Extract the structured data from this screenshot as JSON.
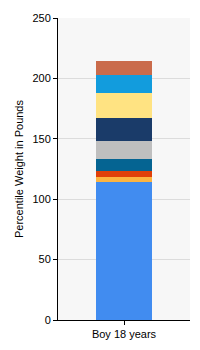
{
  "chart_data": {
    "type": "bar",
    "stacked": true,
    "grid": true,
    "y_label": "Percentile Weight in Pounds",
    "categories": [
      "Boy 18 years"
    ],
    "series": [
      {
        "color": "#418CF0",
        "values": [
          114
        ]
      },
      {
        "color": "#FCB441",
        "values": [
          4
        ]
      },
      {
        "color": "#E0400A",
        "values": [
          5
        ]
      },
      {
        "color": "#056492",
        "values": [
          10
        ]
      },
      {
        "color": "#BFBFBF",
        "values": [
          15
        ]
      },
      {
        "color": "#1A3B69",
        "values": [
          19
        ]
      },
      {
        "color": "#FFE382",
        "values": [
          21
        ]
      },
      {
        "color": "#129CDD",
        "values": [
          15
        ]
      },
      {
        "color": "#CA6B4B",
        "values": [
          11
        ]
      }
    ],
    "ylim": [
      0,
      250
    ],
    "yticks": [
      0,
      50,
      100,
      150,
      200,
      250
    ]
  }
}
